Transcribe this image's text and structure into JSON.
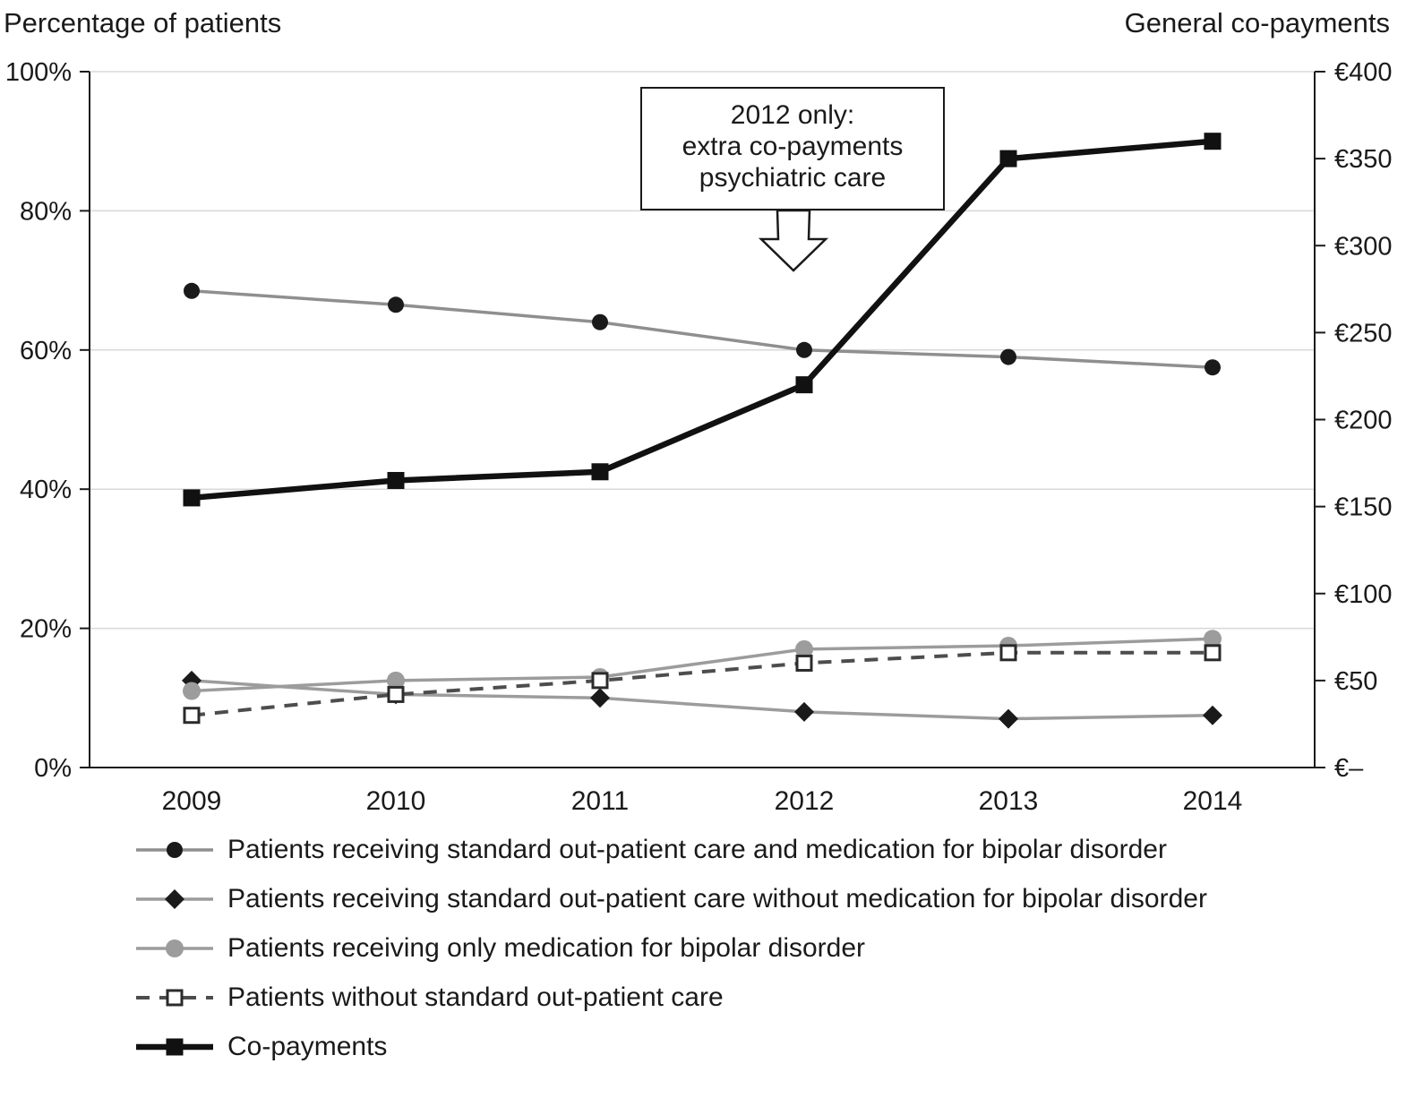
{
  "header": {
    "left_title": "Percentage of patients",
    "right_title": "General co-payments"
  },
  "annotation": {
    "line1": "2012 only:",
    "line2": "extra co-payments",
    "line3": "psychiatric care"
  },
  "chart_data": {
    "type": "line",
    "x": [
      "2009",
      "2010",
      "2011",
      "2012",
      "2013",
      "2014"
    ],
    "left_axis": {
      "title": "Percentage of patients",
      "tick_labels": [
        "0%",
        "20%",
        "40%",
        "60%",
        "80%",
        "100%"
      ],
      "tick_values": [
        0,
        20,
        40,
        60,
        80,
        100
      ],
      "max": 100
    },
    "right_axis": {
      "title": "General co-payments",
      "tick_labels": [
        "€–",
        "€50",
        "€100",
        "€150",
        "€200",
        "€250",
        "€300",
        "€350",
        "€400"
      ],
      "tick_values": [
        0,
        50,
        100,
        150,
        200,
        250,
        300,
        350,
        400
      ],
      "max": 400
    },
    "series": [
      {
        "name": "Patients receiving standard out-patient care and medication for bipolar disorder",
        "axis": "left",
        "values": [
          68.5,
          66.5,
          64,
          60,
          59,
          57.5
        ],
        "color": "#8f8f8f",
        "width": 3.5,
        "dash": null,
        "marker": "circle",
        "marker_size": 9,
        "marker_color": "#1a1a1a"
      },
      {
        "name": "Patients receiving standard out-patient care without medication for bipolar disorder",
        "axis": "left",
        "values": [
          12.5,
          10.5,
          10,
          8,
          7,
          7.5
        ],
        "color": "#9c9c9c",
        "width": 3.5,
        "dash": null,
        "marker": "diamond",
        "marker_size": 11,
        "marker_color": "#1a1a1a"
      },
      {
        "name": "Patients receiving only medication for bipolar disorder",
        "axis": "left",
        "values": [
          11,
          12.5,
          13,
          17,
          17.5,
          18.5
        ],
        "color": "#9c9c9c",
        "width": 3.5,
        "dash": null,
        "marker": "circle",
        "marker_size": 10,
        "marker_color": "#9c9c9c"
      },
      {
        "name": "Patients without standard out-patient care",
        "axis": "left",
        "values": [
          7.5,
          10.5,
          12.5,
          15,
          16.5,
          16.5
        ],
        "color": "#4d4d4d",
        "width": 4,
        "dash": "15 11",
        "marker": "square-open",
        "marker_size": 16,
        "marker_color": "#2b2b2b"
      },
      {
        "name": "Co-payments",
        "axis": "right",
        "values": [
          155,
          165,
          170,
          220,
          350,
          360
        ],
        "color": "#111111",
        "width": 6.5,
        "dash": null,
        "marker": "square",
        "marker_size": 19,
        "marker_color": "#111111"
      }
    ]
  }
}
